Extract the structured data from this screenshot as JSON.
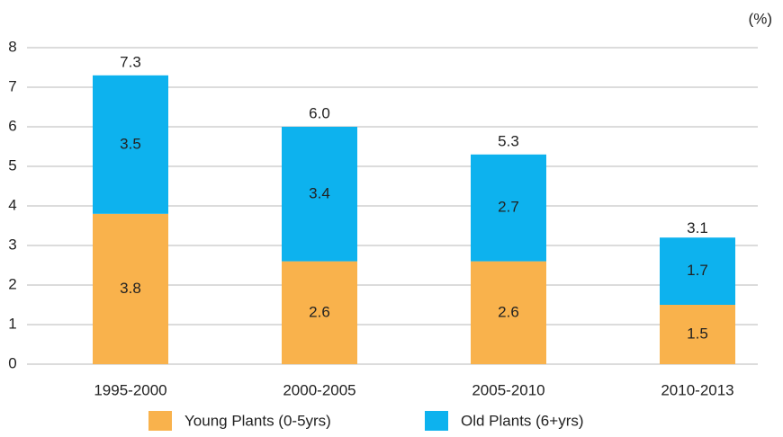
{
  "chart_data": {
    "type": "stacked_bar",
    "y_label": "(%)",
    "categories": [
      "1995-2000",
      "2000-2005",
      "2005-2010",
      "2010-2013"
    ],
    "series": [
      {
        "name": "Young Plants (0-5yrs)",
        "color": "#f9b24c",
        "values": [
          3.8,
          2.6,
          2.6,
          1.5
        ]
      },
      {
        "name": "Old Plants (6+yrs)",
        "color": "#0db2ee",
        "values": [
          3.5,
          3.4,
          2.7,
          1.7
        ]
      }
    ],
    "totals": {
      "values": [
        7.3,
        6.0,
        5.3,
        3.1
      ],
      "value_labels": [
        "7.3",
        "6.0",
        "5.3",
        "3.1"
      ]
    },
    "ylim": [
      0,
      8
    ],
    "yticks": [
      0,
      1,
      2,
      3,
      4,
      5,
      6,
      7,
      8
    ],
    "grid": true,
    "legend": "bottom"
  }
}
